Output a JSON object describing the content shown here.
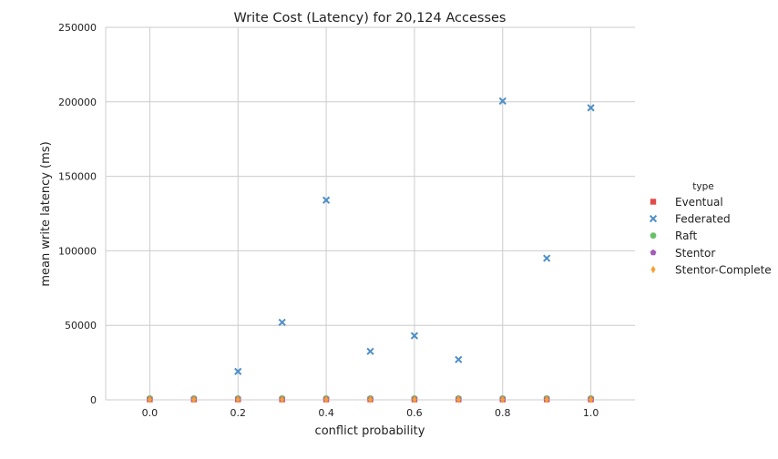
{
  "chart_data": {
    "type": "scatter",
    "title": "Write Cost (Latency) for 20,124 Accesses",
    "xlabel": "conflict probability",
    "ylabel": "mean write latency (ms)",
    "xlim": [
      -0.1,
      1.1
    ],
    "ylim": [
      0,
      250000
    ],
    "xticks": [
      "0.0",
      "0.2",
      "0.4",
      "0.6",
      "0.8",
      "1.0"
    ],
    "yticks": [
      "0",
      "50000",
      "100000",
      "150000",
      "200000",
      "250000"
    ],
    "grid": true,
    "legend_title": "type",
    "legend_position": "right",
    "series": [
      {
        "name": "Eventual",
        "marker": "square",
        "color": "#e24a4a",
        "x": [
          0.0,
          0.1,
          0.2,
          0.3,
          0.4,
          0.5,
          0.6,
          0.7,
          0.8,
          0.9,
          1.0
        ],
        "y": [
          300,
          300,
          300,
          300,
          300,
          300,
          300,
          300,
          300,
          300,
          300
        ]
      },
      {
        "name": "Federated",
        "marker": "x",
        "color": "#4e8fc7",
        "x": [
          0.2,
          0.3,
          0.4,
          0.5,
          0.6,
          0.7,
          0.8,
          0.9,
          1.0
        ],
        "y": [
          19000,
          52000,
          134000,
          32500,
          43000,
          27000,
          200500,
          95000,
          196000
        ]
      },
      {
        "name": "Raft",
        "marker": "circle",
        "color": "#6abf69",
        "x": [
          0.0,
          0.1,
          0.2,
          0.3,
          0.4,
          0.5,
          0.6,
          0.7,
          0.8,
          0.9,
          1.0
        ],
        "y": [
          1000,
          1000,
          1000,
          1000,
          1000,
          1000,
          1000,
          1000,
          1000,
          1000,
          1000
        ]
      },
      {
        "name": "Stentor",
        "marker": "pentagon",
        "color": "#a25cb8",
        "x": [
          0.0,
          0.1,
          0.2,
          0.3,
          0.4,
          0.5,
          0.6,
          0.7,
          0.8,
          0.9,
          1.0
        ],
        "y": [
          500,
          500,
          500,
          500,
          500,
          500,
          500,
          500,
          500,
          500,
          500
        ]
      },
      {
        "name": "Stentor-Complete",
        "marker": "diamond",
        "color": "#f5a031",
        "x": [
          0.0,
          0.1,
          0.2,
          0.3,
          0.4,
          0.5,
          0.6,
          0.7,
          0.8,
          0.9,
          1.0
        ],
        "y": [
          200,
          200,
          200,
          200,
          200,
          200,
          200,
          200,
          200,
          200,
          200
        ]
      }
    ]
  }
}
